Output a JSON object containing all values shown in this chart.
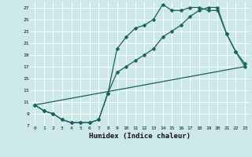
{
  "xlabel": "Humidex (Indice chaleur)",
  "bg_color": "#cce8e8",
  "grid_color": "#ffffff",
  "line_color": "#1a6060",
  "xlim": [
    -0.5,
    23.5
  ],
  "ylim": [
    7,
    28
  ],
  "yticks": [
    7,
    9,
    11,
    13,
    15,
    17,
    19,
    21,
    23,
    25,
    27
  ],
  "xticks": [
    0,
    1,
    2,
    3,
    4,
    5,
    6,
    7,
    8,
    9,
    10,
    11,
    12,
    13,
    14,
    15,
    16,
    17,
    18,
    19,
    20,
    21,
    22,
    23
  ],
  "line1_x": [
    0,
    1,
    2,
    3,
    4,
    5,
    6,
    7,
    8,
    9,
    10,
    11,
    12,
    13,
    14,
    15,
    16,
    17,
    18,
    19,
    20,
    21,
    22,
    23
  ],
  "line1_y": [
    10.5,
    9.5,
    9.0,
    8.0,
    7.5,
    7.5,
    7.5,
    8.0,
    12.5,
    20.0,
    22.0,
    23.5,
    24.0,
    25.0,
    27.5,
    26.5,
    26.5,
    27.0,
    27.0,
    26.5,
    26.5,
    22.5,
    19.5,
    17.5
  ],
  "line2_x": [
    0,
    1,
    2,
    3,
    4,
    5,
    6,
    7,
    8,
    9,
    10,
    11,
    12,
    13,
    14,
    15,
    16,
    17,
    18,
    19,
    20,
    21,
    22,
    23
  ],
  "line2_y": [
    10.5,
    9.5,
    9.0,
    8.0,
    7.5,
    7.5,
    7.5,
    8.0,
    12.5,
    16.0,
    17.0,
    18.0,
    19.0,
    20.0,
    22.0,
    23.0,
    24.0,
    25.5,
    26.5,
    27.0,
    27.0,
    22.5,
    19.5,
    17.0
  ],
  "line3_x": [
    0,
    23
  ],
  "line3_y": [
    10.5,
    17.0
  ],
  "markersize": 2.5,
  "linewidth": 0.9
}
